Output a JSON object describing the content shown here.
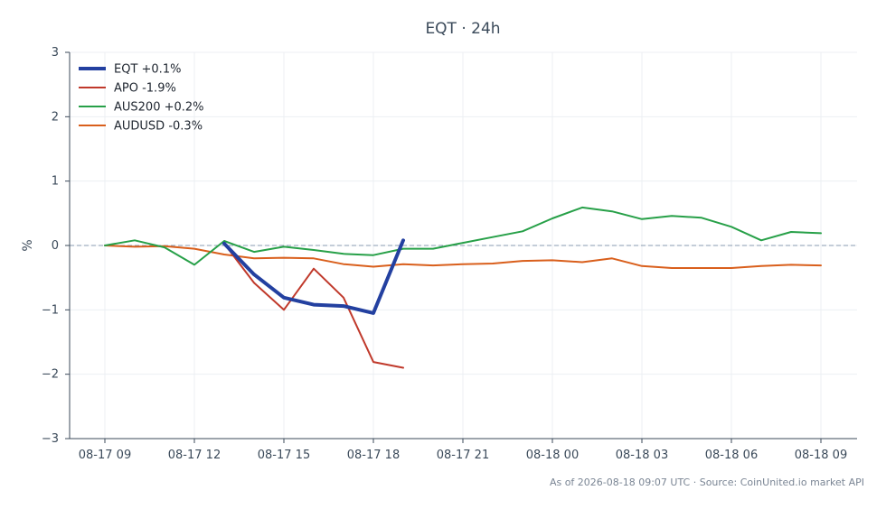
{
  "chart_data": {
    "type": "line",
    "title": "EQT · 24h",
    "ylabel": "%",
    "xlabel": "",
    "ylim": [
      -3,
      3
    ],
    "yticks": [
      3,
      2,
      1,
      0,
      -1,
      -2,
      -3
    ],
    "ytick_labels": [
      "3",
      "2",
      "1",
      "0",
      "−1",
      "−2",
      "−3"
    ],
    "xticks": [
      0,
      3,
      6,
      9,
      12,
      15,
      18,
      21,
      24
    ],
    "xtick_labels": [
      "08-17 09",
      "08-17 12",
      "08-17 15",
      "08-17 18",
      "08-17 21",
      "08-18 00",
      "08-18 03",
      "08-18 06",
      "08-18 09"
    ],
    "x_unit": "hours since 08-17 09:00",
    "zero_line": true,
    "grid": true,
    "legend_position": "top-left",
    "series": [
      {
        "name": "EQT +0.1%",
        "color": "#2340a0",
        "width": 4,
        "x": [
          4,
          5,
          6,
          7,
          8,
          9,
          10
        ],
        "values": [
          0.03,
          -0.45,
          -0.81,
          -0.92,
          -0.94,
          -1.05,
          0.08
        ]
      },
      {
        "name": "APO -1.9%",
        "color": "#c0392b",
        "width": 2,
        "x": [
          4,
          5,
          6,
          7,
          8,
          9,
          10
        ],
        "values": [
          0.03,
          -0.58,
          -1.0,
          -0.36,
          -0.81,
          -1.81,
          -1.9
        ]
      },
      {
        "name": "AUS200 +0.2%",
        "color": "#27a048",
        "width": 2,
        "x": [
          0,
          1,
          2,
          3,
          4,
          5,
          6,
          7,
          8,
          9,
          10,
          11,
          12,
          13,
          14,
          15,
          16,
          17,
          18,
          19,
          20,
          21,
          22,
          23,
          24
        ],
        "values": [
          0.0,
          0.08,
          -0.03,
          -0.3,
          0.07,
          -0.1,
          -0.02,
          -0.07,
          -0.13,
          -0.15,
          -0.05,
          -0.05,
          0.04,
          0.13,
          0.22,
          0.42,
          0.59,
          0.53,
          0.41,
          0.46,
          0.43,
          0.29,
          0.08,
          0.21,
          0.19
        ]
      },
      {
        "name": "AUDUSD -0.3%",
        "color": "#d95f1c",
        "width": 2,
        "x": [
          0,
          1,
          2,
          3,
          4,
          5,
          6,
          7,
          8,
          9,
          10,
          11,
          12,
          13,
          14,
          15,
          16,
          17,
          18,
          19,
          20,
          21,
          22,
          23,
          24
        ],
        "values": [
          0.0,
          -0.02,
          -0.01,
          -0.05,
          -0.14,
          -0.2,
          -0.19,
          -0.2,
          -0.29,
          -0.33,
          -0.29,
          -0.31,
          -0.29,
          -0.28,
          -0.24,
          -0.23,
          -0.26,
          -0.2,
          -0.32,
          -0.35,
          -0.35,
          -0.35,
          -0.32,
          -0.3,
          -0.31
        ]
      }
    ],
    "footnote": "As of 2026-08-18 09:07 UTC · Source: CoinUnited.io market API"
  }
}
